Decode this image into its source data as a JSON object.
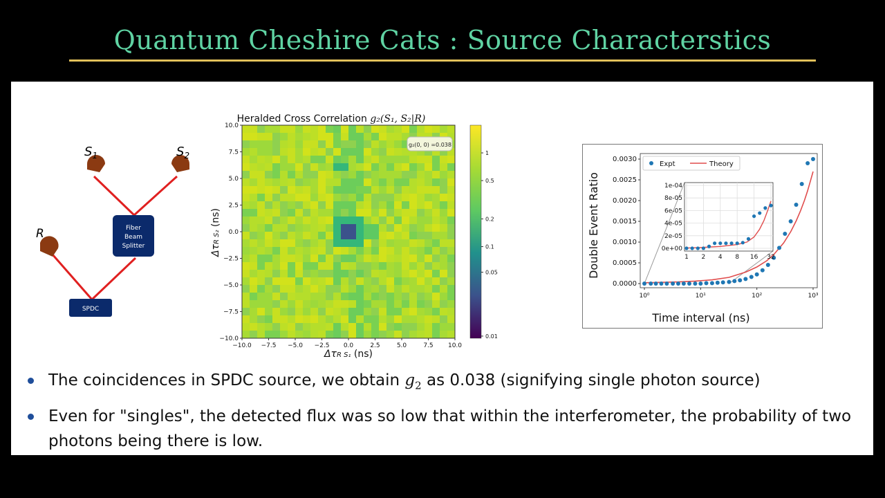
{
  "slide": {
    "title": "Quantum Cheshire Cats : Source Characterstics",
    "accent_color": "#5fd3a3",
    "rule_color": "#e2c15a"
  },
  "setup_diagram": {
    "detector_s1": "S",
    "detector_s1_sub": "1",
    "detector_s2": "S",
    "detector_s2_sub": "2",
    "detector_r": "R",
    "beam_splitter_lines": [
      "Fiber",
      "Beam",
      "Splitter"
    ],
    "source_label": "SPDC",
    "box_color": "#0b2a6b",
    "detector_color": "#8b3a12",
    "beam_color": "#e02020"
  },
  "heatmap": {
    "title": "Heralded Cross Correlation",
    "title_math": "g₂(S₁, S₂|R)",
    "xlabel": "Δτ",
    "xlabel_sub": "R S₁",
    "xlabel_unit": "(ns)",
    "ylabel": "Δτ",
    "ylabel_sub": "R S₂",
    "ylabel_unit": "(ns)",
    "annotation": "g₂(0, 0) =0.038",
    "x_ticks": [
      "−10.0",
      "−7.5",
      "−5.0",
      "−2.5",
      "0.0",
      "2.5",
      "5.0",
      "7.5",
      "10.0"
    ],
    "y_ticks": [
      "10.0",
      "7.5",
      "5.0",
      "2.5",
      "0.0",
      "−2.5",
      "−5.0",
      "−7.5",
      "−10.0"
    ],
    "colorbar_ticks": [
      "1",
      "0.5",
      "0.2",
      "0.1",
      "0.05",
      "0.01"
    ]
  },
  "chart_data": {
    "type": "scatter",
    "xlabel": "Time interval (ns)",
    "ylabel": "Double Event Ratio",
    "x_scale": "log",
    "xlim": [
      1,
      1000
    ],
    "ylim": [
      0,
      0.003
    ],
    "y_ticks": [
      "0.0000",
      "0.0005",
      "0.0010",
      "0.0015",
      "0.0020",
      "0.0025",
      "0.0030"
    ],
    "x_ticks": [
      "10⁰",
      "10¹",
      "10²",
      "10³"
    ],
    "legend_position": "top-left",
    "series": [
      {
        "name": "Expt",
        "marker": "dot",
        "color": "#1f77b4",
        "x": [
          1,
          1.3,
          1.6,
          2,
          2.5,
          3.2,
          4,
          5,
          6.3,
          8,
          10,
          12.6,
          16,
          20,
          25,
          32,
          40,
          50,
          63,
          80,
          100,
          126,
          158,
          200,
          250,
          316,
          400,
          500,
          630,
          800,
          1000
        ],
        "y": [
          0.0,
          0.0,
          0.0,
          0.0,
          0.0,
          0.0,
          0.0,
          0.0,
          0.0,
          0.0,
          0.0,
          1e-05,
          1e-05,
          2e-05,
          3e-05,
          4e-05,
          6e-05,
          8e-05,
          0.00011,
          0.00016,
          0.00022,
          0.00032,
          0.00045,
          0.00062,
          0.00086,
          0.0012,
          0.0015,
          0.0019,
          0.0024,
          0.0029,
          0.003
        ]
      },
      {
        "name": "Theory",
        "marker": "line",
        "color": "#e04c4c",
        "x": [
          1,
          2,
          4,
          8,
          16,
          32,
          64,
          100,
          150,
          200,
          300,
          400,
          500,
          600,
          700,
          800,
          900,
          1000
        ],
        "y": [
          2e-05,
          3e-05,
          4e-05,
          6e-05,
          9e-05,
          0.00015,
          0.00028,
          0.0004,
          0.00055,
          0.0007,
          0.00098,
          0.00125,
          0.00151,
          0.00176,
          0.002,
          0.00224,
          0.00248,
          0.0027
        ]
      }
    ],
    "inset": {
      "x_scale": "log2",
      "xlim": [
        1,
        32
      ],
      "ylim": [
        0,
        0.0001
      ],
      "x_ticks": [
        "1",
        "2",
        "4",
        "8",
        "16",
        "32"
      ],
      "y_ticks": [
        "0e+00",
        "2e-05",
        "4e-05",
        "6e-05",
        "8e-05",
        "1e-04"
      ],
      "expt": {
        "x": [
          1,
          1.26,
          1.59,
          2,
          2.52,
          3.17,
          4,
          5.04,
          6.35,
          8,
          10.08,
          12.7,
          16,
          20.16,
          25.4,
          32
        ],
        "y": [
          0.0,
          0.0,
          0.0,
          0.0,
          3e-06,
          8e-06,
          8e-06,
          8e-06,
          8e-06,
          8e-06,
          9e-06,
          1.5e-05,
          5.1e-05,
          5.6e-05,
          6.4e-05,
          6.8e-05
        ]
      },
      "theory": {
        "x": [
          1,
          2,
          4,
          8,
          12,
          16,
          20,
          24,
          28,
          32
        ],
        "y": [
          5e-07,
          1.5e-06,
          3e-06,
          6e-06,
          1e-05,
          1.8e-05,
          3e-05,
          4.4e-05,
          6e-05,
          7.5e-05
        ]
      }
    }
  },
  "bullets": {
    "item1_before": "The coincidences in SPDC source, we obtain ",
    "item1_math": "g",
    "item1_math_sub": "2",
    "item1_after": " as 0.038 (signifying single photon source)",
    "item2": "Even for \"singles\", the detected flux was so low that within the interferometer, the probability of two photons being there is low."
  }
}
